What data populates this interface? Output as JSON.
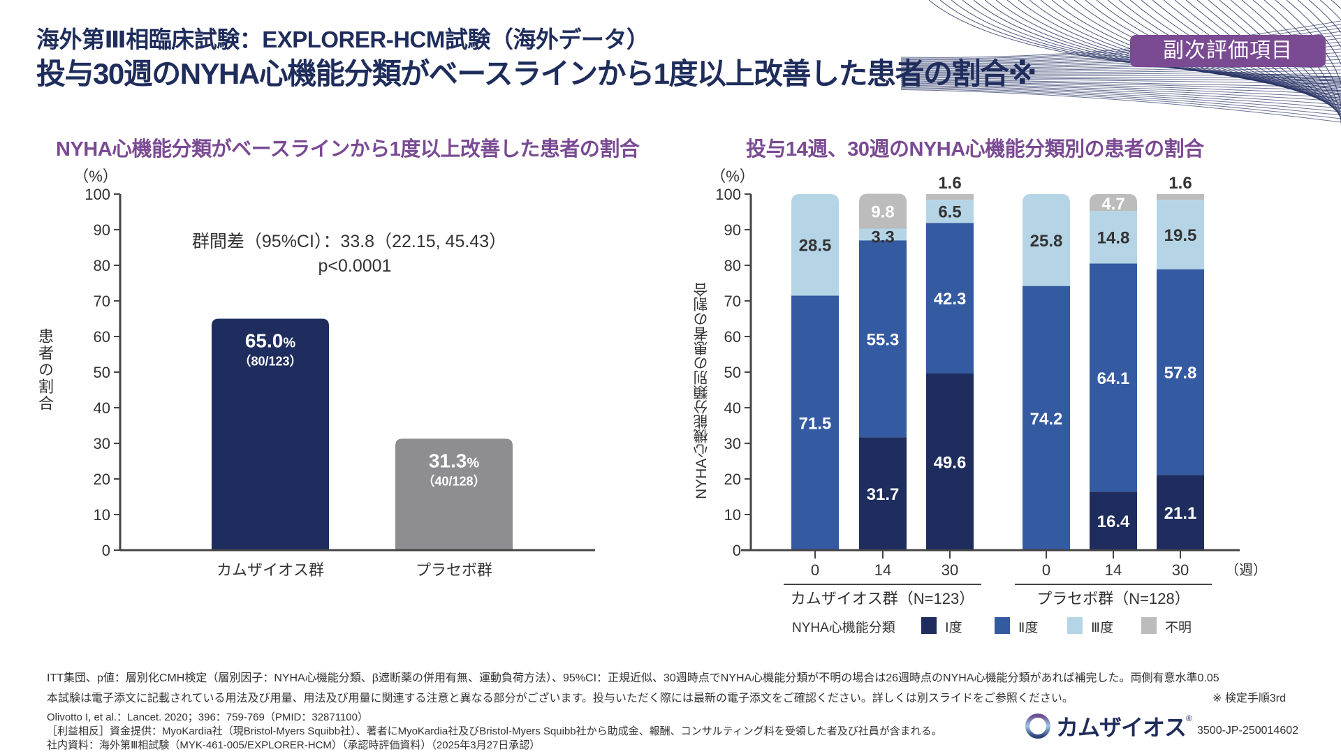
{
  "header": {
    "subtitle": "海外第Ⅲ相臨床試験：EXPLORER-HCM試験（海外データ）",
    "title": "投与30週のNYHA心機能分類がベースラインから1度以上改善した患者の割合※",
    "badge": "副次評価項目"
  },
  "colors": {
    "title_navy": "#1f2d5c",
    "accent_purple": "#7a4a93",
    "class1": "#1e2d5e",
    "class2": "#345aa2",
    "class3": "#b5d5e7",
    "unknown": "#bcbcbc",
    "placebo_bar": "#8e8d92"
  },
  "chart_data": [
    {
      "type": "bar",
      "title": "NYHA心機能分類がベースラインから1度以上改善した患者の割合",
      "unit_label": "（%）",
      "ylabel": "患者の割合",
      "xlabel": "",
      "ylim": [
        0,
        100
      ],
      "yticks": [
        0,
        10,
        20,
        30,
        40,
        50,
        60,
        70,
        80,
        90,
        100
      ],
      "categories": [
        "カムザイオス群",
        "プラセボ群"
      ],
      "values": [
        65.0,
        31.3
      ],
      "value_labels": [
        "65.0",
        "31.3"
      ],
      "value_suffix": "%",
      "counts": [
        "（80/123）",
        "（40/128）"
      ],
      "annotation": {
        "line1": "群間差（95%CI）：33.8（22.15, 45.43）",
        "line2": "p<0.0001"
      },
      "grid": false
    },
    {
      "type": "bar",
      "stacked": true,
      "title": "投与14週、30週のNYHA心機能分類別の患者の割合",
      "unit_label": "（%）",
      "ylabel": "NYHA心機能分類別の患者の割合",
      "ylim": [
        0,
        100
      ],
      "yticks": [
        0,
        10,
        20,
        30,
        40,
        50,
        60,
        70,
        80,
        90,
        100
      ],
      "x_unit": "（週）",
      "groups": [
        {
          "label": "カムザイオス群（N=123）",
          "weeks": [
            "0",
            "14",
            "30"
          ]
        },
        {
          "label": "プラセボ群（N=128）",
          "weeks": [
            "0",
            "14",
            "30"
          ]
        }
      ],
      "categories": [
        "カムザイオス 0",
        "カムザイオス 14",
        "カムザイオス 30",
        "プラセボ 0",
        "プラセボ 14",
        "プラセボ 30"
      ],
      "series": [
        {
          "name": "Ⅰ度",
          "values": [
            0,
            31.7,
            49.6,
            0,
            16.4,
            21.1
          ]
        },
        {
          "name": "Ⅱ度",
          "values": [
            71.5,
            55.3,
            42.3,
            74.2,
            64.1,
            57.8
          ]
        },
        {
          "name": "Ⅲ度",
          "values": [
            28.5,
            3.3,
            6.5,
            25.8,
            14.8,
            19.5
          ]
        },
        {
          "name": "不明",
          "values": [
            0,
            9.8,
            1.6,
            0,
            4.7,
            1.6
          ]
        }
      ],
      "legend": {
        "title": "NYHA心機能分類",
        "items": [
          "Ⅰ度",
          "Ⅱ度",
          "Ⅲ度",
          "不明"
        ],
        "placement": "bottom"
      },
      "grid": false
    }
  ],
  "footer": {
    "note1": "ITT集団、p値：層別化CMH検定（層別因子：NYHA心機能分類、β遮断薬の併用有無、運動負荷方法）、95%CI：正規近似、30週時点でNYHA心機能分類が不明の場合は26週時点のNYHA心機能分類があれば補完した。両側有意水準0.05",
    "note2": "本試験は電子添文に記載されている用法及び用量、用法及び用量に関連する注意と異なる部分がございます。投与いただく際には最新の電子添文をご確認ください。詳しくは別スライドをご参照ください。",
    "note_right": "※ 検定手順3rd",
    "ref1": "Olivotto I, et al.：Lancet. 2020；396：759-769（PMID：32871100）",
    "ref2": "［利益相反］資金提供：MyoKardia社（現Bristol-Myers Squibb社）、著者にMyoKardia社及びBristol-Myers Squibb社から助成金、報酬、コンサルティング料を受領した者及び社員が含まれる。",
    "ref3": "社内資料：海外第Ⅲ相試験（MYK-461-005/EXPLORER-HCM）（承認時評価資料）（2025年3月27日承認）",
    "logo_text": "カムザイオス",
    "logo_reg": "®",
    "code": "3500-JP-250014602"
  }
}
